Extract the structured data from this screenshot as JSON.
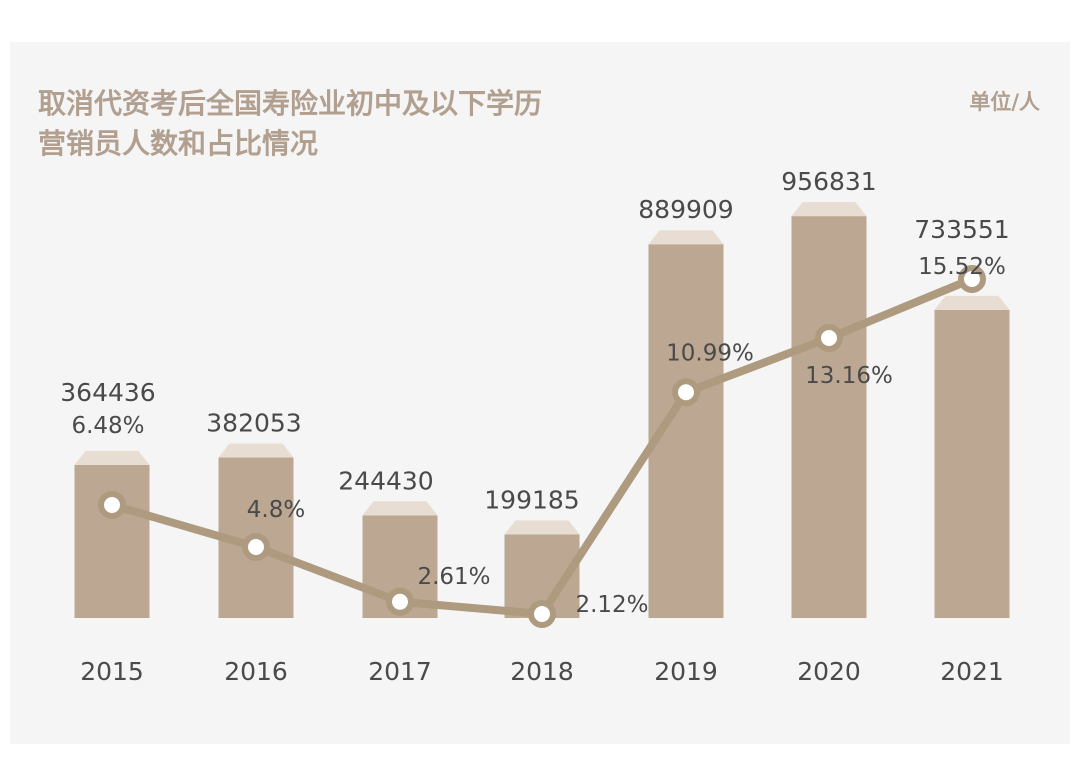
{
  "chart_data": {
    "type": "bar",
    "title_lines": [
      "取消代资考后全国寿险业初中及以下学历",
      "营销员人数和占比情况"
    ],
    "unit": "单位/人",
    "categories": [
      "2015",
      "2016",
      "2017",
      "2018",
      "2019",
      "2020",
      "2021"
    ],
    "series": [
      {
        "type": "bar",
        "values": [
          364436,
          382053,
          244430,
          199185,
          889909,
          956831,
          733551
        ]
      },
      {
        "type": "line",
        "values": [
          6.48,
          4.8,
          2.61,
          2.12,
          10.99,
          13.16,
          15.52
        ],
        "labels": [
          "6.48%",
          "4.8%",
          "2.61%",
          "2.12%",
          "10.99%",
          "13.16%",
          "15.52%"
        ]
      }
    ],
    "bar_labels": [
      "364436",
      "382053",
      "244430",
      "199185",
      "889909",
      "956831",
      "733551"
    ],
    "colors": {
      "bar": "#bca793",
      "bar_cap": "#e8ddd3",
      "line": "#ad9a7f",
      "marker_fill": "#ffffff",
      "title": "#b19f8f",
      "panel": "#f5f5f5"
    }
  }
}
